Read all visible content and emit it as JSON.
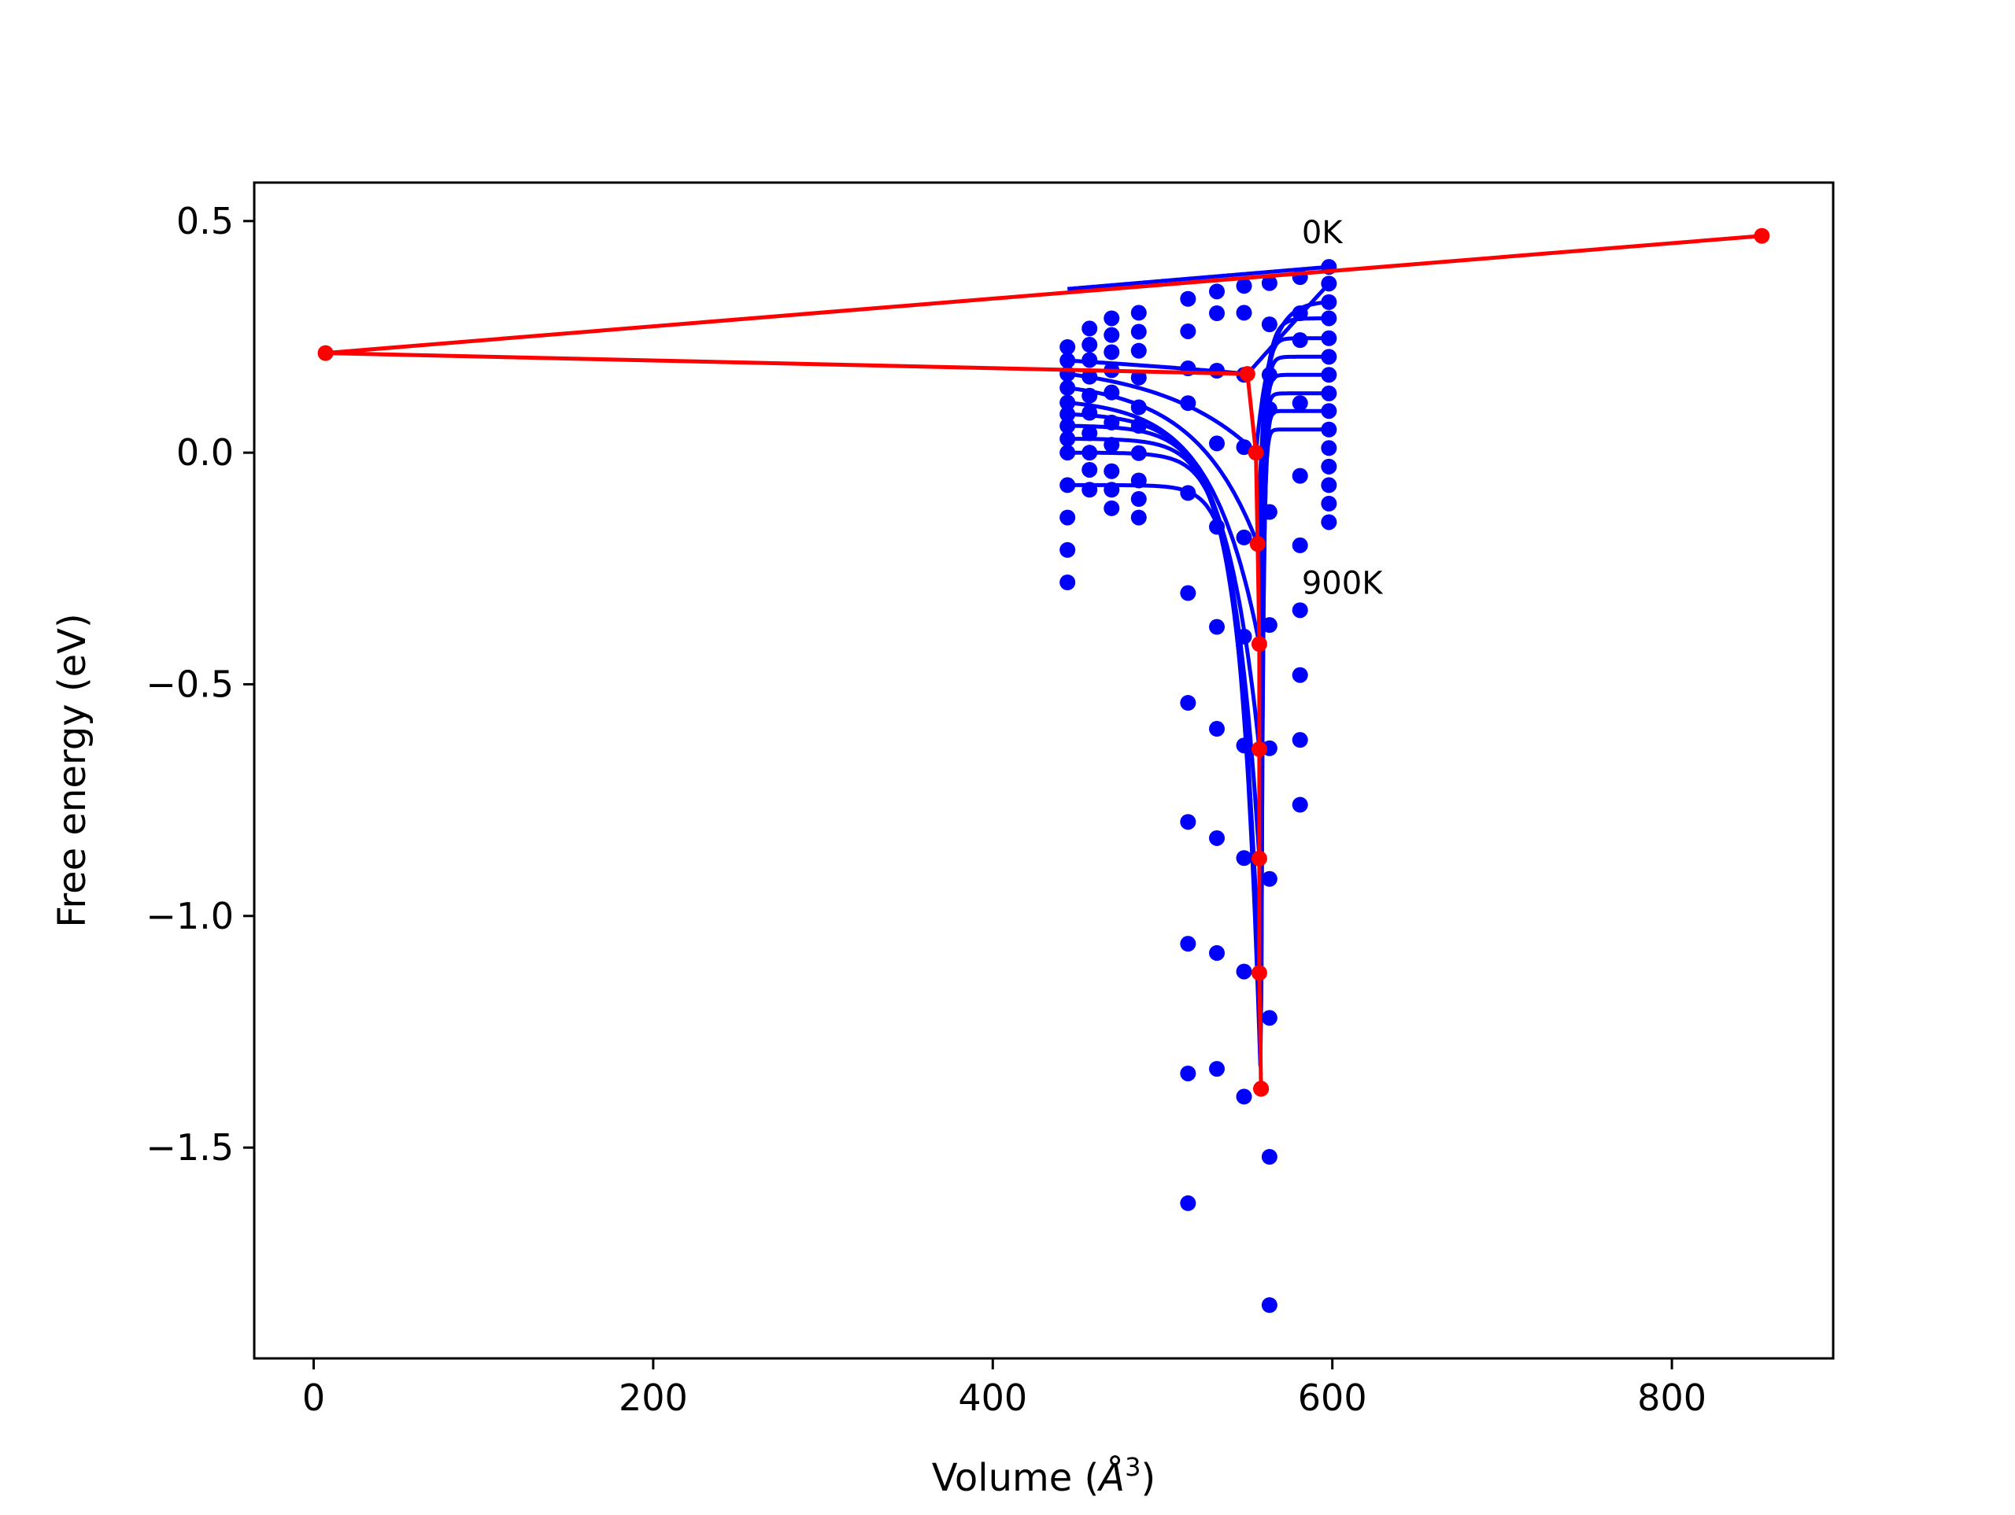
{
  "chart_data": {
    "type": "scatter",
    "title": "",
    "xlabel": "Volume (Å³)",
    "xlabel_text": "Volume (",
    "xlabel_symbol": "Å",
    "xlabel_sup": "3",
    "xlabel_end": ")",
    "ylabel": "Free energy (eV)",
    "xlim": [
      -35,
      895
    ],
    "ylim": [
      -1.955,
      0.583
    ],
    "xticks": [
      0,
      200,
      400,
      600,
      800
    ],
    "xtick_labels": [
      "0",
      "200",
      "400",
      "600",
      "800"
    ],
    "yticks": [
      0.5,
      0.0,
      -0.5,
      -1.0,
      -1.5
    ],
    "ytick_labels": [
      "0.5",
      "0.0",
      "−0.5",
      "−1.0",
      "−1.5"
    ],
    "grid": false,
    "legend": "none",
    "colors": {
      "fit": "#0000ff",
      "points": "#0000ff",
      "minima": "#ff0000"
    },
    "annotations": [
      {
        "text": "0K",
        "x": 582,
        "y": 0.452
      },
      {
        "text": "900K",
        "x": 582,
        "y": -0.305
      }
    ],
    "series": [
      {
        "volume": [
          444,
          457,
          470,
          486,
          515,
          532,
          548,
          563,
          581,
          598
        ],
        "energy": [
          0.228,
          0.268,
          0.29,
          0.302,
          0.332,
          0.348,
          0.36,
          0.366,
          0.379,
          0.401
        ]
      },
      {
        "volume": [
          444,
          457,
          470,
          486,
          515,
          532,
          548,
          563,
          581,
          598
        ],
        "energy": [
          0.199,
          0.233,
          0.254,
          0.261,
          0.262,
          0.301,
          0.302,
          0.277,
          0.301,
          0.365
        ]
      },
      {
        "volume": [
          444,
          457,
          470,
          486,
          515,
          532,
          548,
          563,
          581,
          598
        ],
        "energy": [
          0.17,
          0.2,
          0.217,
          0.22,
          0.182,
          0.177,
          0.168,
          0.168,
          0.243,
          0.325
        ]
      },
      {
        "volume": [
          444,
          457,
          470,
          486,
          515,
          532,
          548,
          563,
          581,
          598
        ],
        "energy": [
          0.14,
          0.164,
          0.178,
          0.162,
          0.107,
          0.02,
          0.012,
          0.094,
          0.107,
          0.29
        ]
      },
      {
        "volume": [
          444,
          457,
          470,
          486,
          515,
          532,
          548,
          563,
          581,
          598
        ],
        "energy": [
          0.108,
          0.123,
          0.13,
          0.098,
          -0.087,
          -0.16,
          -0.183,
          -0.128,
          -0.05,
          0.247
        ]
      },
      {
        "volume": [
          444,
          457,
          470,
          486,
          515,
          532,
          548,
          563,
          581,
          598
        ],
        "energy": [
          0.083,
          0.086,
          0.065,
          0.058,
          -0.303,
          -0.376,
          -0.397,
          -0.372,
          -0.2,
          0.207
        ]
      },
      {
        "volume": [
          444,
          457,
          470,
          486,
          515,
          532,
          548,
          563,
          581,
          598
        ],
        "energy": [
          0.058,
          0.042,
          0.017,
          -0.001,
          -0.54,
          -0.596,
          -0.632,
          -0.638,
          -0.34,
          0.168
        ]
      },
      {
        "volume": [
          444,
          457,
          470,
          486,
          515,
          532,
          548,
          563,
          581,
          598
        ],
        "energy": [
          0.03,
          0.0,
          -0.04,
          -0.06,
          -0.797,
          -0.832,
          -0.875,
          -0.92,
          -0.48,
          0.128
        ]
      },
      {
        "volume": [
          444,
          457,
          470,
          486,
          515,
          532,
          548,
          563,
          581,
          598
        ],
        "energy": [
          0.0,
          -0.037,
          -0.08,
          -0.1,
          -1.06,
          -1.08,
          -1.12,
          -1.22,
          -0.62,
          0.09
        ]
      },
      {
        "volume": [
          444,
          457,
          470,
          486,
          515,
          532,
          548,
          563,
          581,
          598
        ],
        "energy": [
          -0.07,
          -0.08,
          -0.12,
          -0.14,
          -1.34,
          -1.33,
          -1.39,
          -1.52,
          -0.76,
          0.05
        ]
      }
    ],
    "extra_points": [
      {
        "volume": 444,
        "energy": -0.14
      },
      {
        "volume": 444,
        "energy": -0.21
      },
      {
        "volume": 444,
        "energy": -0.28
      },
      {
        "volume": 515,
        "energy": -1.62
      },
      {
        "volume": 563,
        "energy": -1.84
      },
      {
        "volume": 598,
        "energy": 0.01
      },
      {
        "volume": 598,
        "energy": -0.03
      },
      {
        "volume": 598,
        "energy": -0.07
      },
      {
        "volume": 598,
        "energy": -0.11
      },
      {
        "volume": 598,
        "energy": -0.15
      }
    ],
    "equilibrium": {
      "volume": [
        853,
        7,
        550,
        555,
        556,
        557,
        557,
        557,
        557,
        558,
        558
      ],
      "energy": [
        0.468,
        0.215,
        0.17,
        0.0,
        -0.197,
        -0.413,
        -0.64,
        -0.876,
        -1.123,
        -1.373,
        -1.373
      ]
    },
    "fit_shape": {
      "s_left": [
        0.6,
        0.4,
        2.0,
        3.0,
        4.0,
        5.5,
        7.0,
        8.5,
        10.0,
        12.0
      ],
      "s_right": [
        0.05,
        0.03,
        5.0,
        10.0,
        16.0,
        20.0,
        24.0,
        28.0,
        32.0,
        36.0
      ]
    }
  }
}
